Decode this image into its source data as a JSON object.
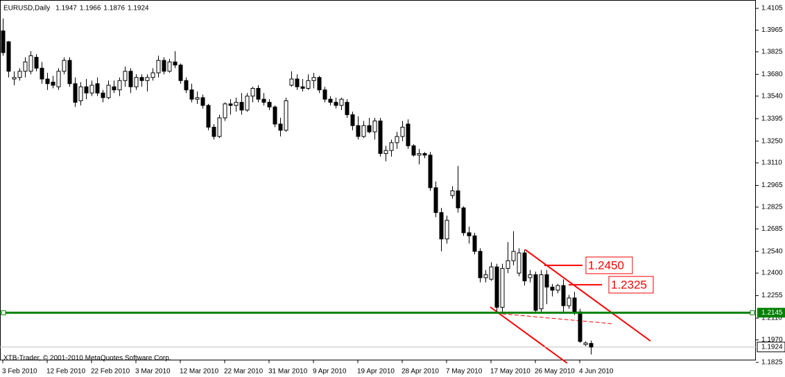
{
  "chart_data": {
    "type": "candlestick",
    "title": "EURUSD,Daily",
    "copyright": "XTB-Trader, © 2001-2010 MetaQuotes Software Corp.",
    "categories": [
      "3 Feb 2010",
      null,
      null,
      null,
      null,
      null,
      null,
      null,
      "12 Feb 2010",
      null,
      null,
      null,
      null,
      null,
      null,
      null,
      "22 Feb 2010",
      null,
      null,
      null,
      null,
      null,
      null,
      null,
      "3 Mar 2010",
      null,
      null,
      null,
      null,
      null,
      null,
      null,
      "12 Mar 2010",
      null,
      null,
      null,
      null,
      null,
      null,
      null,
      "22 Mar 2010",
      null,
      null,
      null,
      null,
      null,
      null,
      null,
      "31 Mar 2010",
      null,
      null,
      null,
      null,
      null,
      null,
      null,
      "9 Apr 2010",
      null,
      null,
      null,
      null,
      null,
      null,
      null,
      "19 Apr 2010",
      null,
      null,
      null,
      null,
      null,
      null,
      null,
      "28 Apr 2010",
      null,
      null,
      null,
      null,
      null,
      null,
      null,
      "7 May 2010",
      null,
      null,
      null,
      null,
      null,
      null,
      null,
      "17 May 2010",
      null,
      null,
      null,
      null,
      null,
      null,
      null,
      "26 May 2010",
      null,
      null,
      null,
      null,
      null,
      null,
      null,
      "4 Jun 2010",
      null,
      null
    ],
    "open": [
      1.396,
      1.389,
      1.365,
      1.366,
      1.37,
      1.37,
      1.379,
      1.372,
      1.365,
      1.363,
      1.36,
      1.37,
      1.377,
      1.362,
      1.351,
      1.36,
      1.356,
      1.362,
      1.356,
      1.353,
      1.36,
      1.358,
      1.364,
      1.37,
      1.36,
      1.366,
      1.364,
      1.366,
      1.369,
      1.377,
      1.37,
      1.376,
      1.374,
      1.364,
      1.358,
      1.352,
      1.353,
      1.348,
      1.334,
      1.328,
      1.34,
      1.349,
      1.348,
      1.35,
      1.345,
      1.354,
      1.359,
      1.352,
      1.35,
      1.347,
      1.336,
      1.332,
      1.361,
      1.365,
      1.36,
      1.359,
      1.364,
      1.366,
      1.358,
      1.352,
      1.35,
      1.348,
      1.35,
      1.342,
      1.335,
      1.328,
      1.335,
      1.331,
      1.338,
      1.317,
      1.319,
      1.324,
      1.328,
      1.336,
      1.322,
      1.316,
      1.317,
      1.316,
      1.295,
      1.279,
      1.262,
      1.29,
      1.293,
      1.282,
      1.266,
      1.264,
      1.254,
      1.237,
      1.236,
      1.244,
      1.218,
      1.243,
      1.248,
      1.24,
      1.253,
      1.237,
      1.239,
      1.217,
      1.239,
      1.231,
      1.229,
      1.232,
      1.219,
      1.224,
      1.215,
      1.194,
      1.1947
    ],
    "high": [
      1.404,
      1.3895,
      1.37,
      1.372,
      1.379,
      1.383,
      1.381,
      1.376,
      1.369,
      1.367,
      1.372,
      1.379,
      1.379,
      1.366,
      1.363,
      1.365,
      1.364,
      1.366,
      1.358,
      1.364,
      1.364,
      1.366,
      1.373,
      1.372,
      1.368,
      1.368,
      1.368,
      1.372,
      1.38,
      1.379,
      1.378,
      1.383,
      1.375,
      1.366,
      1.362,
      1.357,
      1.355,
      1.349,
      1.336,
      1.342,
      1.35,
      1.352,
      1.353,
      1.356,
      1.356,
      1.36,
      1.361,
      1.356,
      1.352,
      1.348,
      1.34,
      1.353,
      1.37,
      1.368,
      1.365,
      1.368,
      1.369,
      1.367,
      1.36,
      1.354,
      1.353,
      1.353,
      1.352,
      1.344,
      1.341,
      1.338,
      1.34,
      1.34,
      1.34,
      1.322,
      1.326,
      1.331,
      1.338,
      1.339,
      1.323,
      1.32,
      1.318,
      1.318,
      1.299,
      1.282,
      1.277,
      1.296,
      1.309,
      1.283,
      1.27,
      1.266,
      1.256,
      1.242,
      1.247,
      1.246,
      1.246,
      1.26,
      1.267,
      1.256,
      1.255,
      1.242,
      1.241,
      1.242,
      1.242,
      1.233,
      1.233,
      1.236,
      1.226,
      1.228,
      1.217,
      1.196,
      1.1966
    ],
    "low": [
      1.38,
      1.366,
      1.361,
      1.364,
      1.366,
      1.368,
      1.37,
      1.362,
      1.358,
      1.359,
      1.358,
      1.368,
      1.36,
      1.347,
      1.348,
      1.352,
      1.354,
      1.354,
      1.35,
      1.352,
      1.356,
      1.354,
      1.36,
      1.356,
      1.358,
      1.36,
      1.357,
      1.364,
      1.366,
      1.368,
      1.369,
      1.372,
      1.362,
      1.356,
      1.35,
      1.349,
      1.346,
      1.332,
      1.326,
      1.327,
      1.338,
      1.342,
      1.344,
      1.342,
      1.344,
      1.35,
      1.35,
      1.348,
      1.345,
      1.334,
      1.328,
      1.331,
      1.36,
      1.358,
      1.357,
      1.358,
      1.359,
      1.356,
      1.35,
      1.348,
      1.346,
      1.345,
      1.34,
      1.332,
      1.326,
      1.327,
      1.33,
      1.326,
      1.315,
      1.312,
      1.315,
      1.32,
      1.325,
      1.32,
      1.315,
      1.31,
      1.314,
      1.293,
      1.276,
      1.254,
      1.259,
      1.288,
      1.279,
      1.264,
      1.259,
      1.252,
      1.234,
      1.234,
      1.235,
      1.215,
      1.215,
      1.24,
      1.245,
      1.238,
      1.232,
      1.234,
      1.215,
      1.215,
      1.22,
      1.225,
      1.227,
      1.215,
      1.217,
      1.213,
      1.195,
      1.193,
      1.1876
    ],
    "close": [
      1.382,
      1.37,
      1.366,
      1.37,
      1.376,
      1.38,
      1.372,
      1.365,
      1.362,
      1.361,
      1.37,
      1.377,
      1.362,
      1.35,
      1.36,
      1.356,
      1.361,
      1.356,
      1.353,
      1.361,
      1.358,
      1.364,
      1.37,
      1.36,
      1.366,
      1.364,
      1.366,
      1.369,
      1.377,
      1.37,
      1.376,
      1.374,
      1.364,
      1.358,
      1.352,
      1.353,
      1.348,
      1.334,
      1.328,
      1.34,
      1.349,
      1.348,
      1.35,
      1.345,
      1.354,
      1.359,
      1.352,
      1.35,
      1.347,
      1.336,
      1.332,
      1.351,
      1.365,
      1.36,
      1.359,
      1.364,
      1.366,
      1.358,
      1.352,
      1.35,
      1.348,
      1.352,
      1.342,
      1.335,
      1.328,
      1.335,
      1.331,
      1.338,
      1.317,
      1.319,
      1.324,
      1.328,
      1.334,
      1.322,
      1.316,
      1.317,
      1.316,
      1.295,
      1.279,
      1.262,
      1.274,
      1.293,
      1.282,
      1.266,
      1.264,
      1.254,
      1.237,
      1.239,
      1.244,
      1.218,
      1.243,
      1.248,
      1.254,
      1.253,
      1.235,
      1.239,
      1.216,
      1.239,
      1.231,
      1.229,
      1.232,
      1.219,
      1.224,
      1.215,
      1.196,
      1.195,
      1.1924
    ],
    "up_color": "#ffffff",
    "down_color": "#000000",
    "ylim": [
      1.1838,
      1.415
    ],
    "yticks": [
      1.4105,
      1.3965,
      1.3825,
      {
        "value": 1.368,
        "label": "1.3680"
      },
      {
        "value": 1.354,
        "label": "1.3540"
      },
      1.3395,
      {
        "value": 1.325,
        "label": "1.3250"
      },
      {
        "value": 1.311,
        "label": "1.3110"
      },
      1.2965,
      1.2825,
      1.2685,
      {
        "value": 1.254,
        "label": "1.2540"
      },
      {
        "value": 1.24,
        "label": "1.2400"
      },
      1.2255,
      {
        "value": 1.211,
        "label": "1.2110"
      },
      {
        "value": 1.197,
        "label": "1.1970"
      },
      1.1825
    ],
    "grid": false,
    "support_line": 1.2145,
    "support_color": "#008000",
    "levels": [
      {
        "value": 1.245,
        "label": "1.2450"
      },
      {
        "value": 1.2325,
        "label": "1.2325"
      }
    ],
    "annotation_color": "#ff0000"
  }
}
